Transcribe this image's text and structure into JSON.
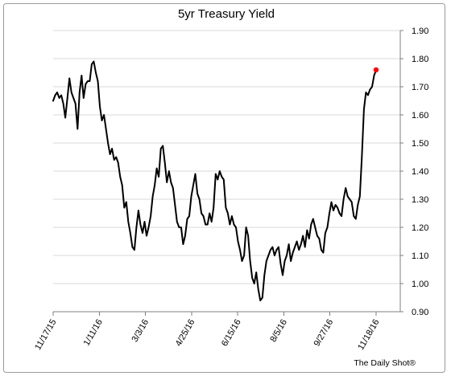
{
  "chart_data": {
    "type": "line",
    "title": "5yr Treasury Yield",
    "xlabel": "",
    "ylabel": "",
    "source": "The Daily Shot®",
    "ylim": [
      0.9,
      1.9
    ],
    "yticks": [
      "1.90",
      "1.80",
      "1.70",
      "1.60",
      "1.50",
      "1.40",
      "1.30",
      "1.20",
      "1.10",
      "1.00",
      "0.90"
    ],
    "xticks": [
      "11/17/15",
      "1/11/16",
      "3/3/16",
      "4/25/16",
      "6/15/16",
      "8/5/16",
      "9/27/16",
      "11/18/16"
    ],
    "grid": true,
    "y_axis_position": "right",
    "highlight_color": "#ff0000",
    "line_color": "#000000",
    "series": [
      {
        "values": [
          1.65,
          1.67,
          1.68,
          1.66,
          1.67,
          1.64,
          1.59,
          1.66,
          1.73,
          1.68,
          1.66,
          1.64,
          1.55,
          1.68,
          1.74,
          1.66,
          1.71,
          1.72,
          1.72,
          1.78,
          1.79,
          1.75,
          1.72,
          1.63,
          1.58,
          1.6,
          1.55,
          1.5,
          1.46,
          1.48,
          1.44,
          1.45,
          1.43,
          1.38,
          1.35,
          1.27,
          1.29,
          1.22,
          1.18,
          1.13,
          1.12,
          1.2,
          1.26,
          1.21,
          1.18,
          1.22,
          1.17,
          1.2,
          1.24,
          1.31,
          1.35,
          1.41,
          1.38,
          1.48,
          1.49,
          1.43,
          1.36,
          1.4,
          1.36,
          1.34,
          1.28,
          1.22,
          1.2,
          1.2,
          1.14,
          1.17,
          1.23,
          1.24,
          1.31,
          1.35,
          1.39,
          1.32,
          1.3,
          1.25,
          1.24,
          1.21,
          1.21,
          1.25,
          1.22,
          1.27,
          1.39,
          1.37,
          1.4,
          1.38,
          1.37,
          1.27,
          1.25,
          1.21,
          1.24,
          1.21,
          1.2,
          1.15,
          1.12,
          1.08,
          1.1,
          1.2,
          1.17,
          1.08,
          1.02,
          1.0,
          1.04,
          0.98,
          0.94,
          0.95,
          1.03,
          1.08,
          1.1,
          1.12,
          1.13,
          1.1,
          1.12,
          1.13,
          1.07,
          1.03,
          1.08,
          1.1,
          1.14,
          1.08,
          1.11,
          1.13,
          1.15,
          1.12,
          1.14,
          1.17,
          1.13,
          1.19,
          1.16,
          1.21,
          1.23,
          1.2,
          1.17,
          1.16,
          1.12,
          1.11,
          1.18,
          1.2,
          1.25,
          1.29,
          1.26,
          1.28,
          1.27,
          1.25,
          1.24,
          1.3,
          1.34,
          1.31,
          1.3,
          1.29,
          1.24,
          1.23,
          1.28,
          1.31,
          1.45,
          1.62,
          1.68,
          1.67,
          1.69,
          1.7,
          1.74,
          1.76
        ]
      }
    ],
    "highlight_last_point": true
  }
}
